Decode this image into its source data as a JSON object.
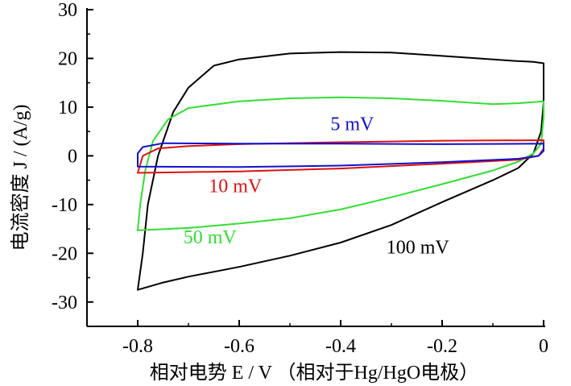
{
  "chart_data": {
    "type": "line",
    "title": "",
    "xlabel": "相对电势 E / V （相对于Hg/HgO电极）",
    "ylabel": "电流密度 J / (A/g)",
    "xlim": [
      -0.9,
      0.0
    ],
    "ylim": [
      -35,
      30
    ],
    "xticks": [
      -0.8,
      -0.6,
      -0.4,
      -0.2,
      0
    ],
    "xtick_labels": [
      "-0.8",
      "-0.6",
      "-0.4",
      "-0.2",
      "0"
    ],
    "yticks": [
      -30,
      -20,
      -10,
      0,
      10,
      20,
      30
    ],
    "ytick_labels": [
      "-30",
      "-20",
      "-10",
      "0",
      "10",
      "20",
      "30"
    ],
    "grid": false,
    "series": [
      {
        "name": "100 mV",
        "color": "#000000",
        "points": [
          [
            -0.8,
            -27.5
          ],
          [
            -0.75,
            -26.0
          ],
          [
            -0.7,
            -24.8
          ],
          [
            -0.6,
            -22.8
          ],
          [
            -0.5,
            -20.5
          ],
          [
            -0.4,
            -17.8
          ],
          [
            -0.3,
            -14.2
          ],
          [
            -0.2,
            -9.5
          ],
          [
            -0.1,
            -5.0
          ],
          [
            -0.05,
            -2.5
          ],
          [
            -0.02,
            0.5
          ],
          [
            -0.005,
            5.0
          ],
          [
            0.0,
            11.0
          ],
          [
            0.0,
            19.0
          ],
          [
            -0.02,
            19.3
          ],
          [
            -0.06,
            19.5
          ],
          [
            -0.2,
            20.5
          ],
          [
            -0.3,
            21.2
          ],
          [
            -0.4,
            21.3
          ],
          [
            -0.5,
            21.0
          ],
          [
            -0.6,
            19.8
          ],
          [
            -0.65,
            18.5
          ],
          [
            -0.7,
            14.0
          ],
          [
            -0.73,
            9.0
          ],
          [
            -0.76,
            0.0
          ],
          [
            -0.78,
            -10.0
          ],
          [
            -0.79,
            -20.0
          ],
          [
            -0.8,
            -27.5
          ]
        ]
      },
      {
        "name": "50 mV",
        "color": "#33dd33",
        "points": [
          [
            -0.8,
            -15.3
          ],
          [
            -0.7,
            -14.8
          ],
          [
            -0.6,
            -13.9
          ],
          [
            -0.5,
            -12.8
          ],
          [
            -0.4,
            -11.0
          ],
          [
            -0.3,
            -8.5
          ],
          [
            -0.2,
            -5.8
          ],
          [
            -0.1,
            -3.0
          ],
          [
            -0.05,
            -1.2
          ],
          [
            -0.02,
            0.5
          ],
          [
            -0.005,
            2.5
          ],
          [
            0.0,
            8.0
          ],
          [
            0.0,
            11.2
          ],
          [
            -0.05,
            10.8
          ],
          [
            -0.1,
            10.6
          ],
          [
            -0.2,
            11.3
          ],
          [
            -0.3,
            11.8
          ],
          [
            -0.4,
            12.0
          ],
          [
            -0.5,
            11.8
          ],
          [
            -0.6,
            11.2
          ],
          [
            -0.7,
            9.8
          ],
          [
            -0.74,
            7.5
          ],
          [
            -0.77,
            3.0
          ],
          [
            -0.785,
            -3.0
          ],
          [
            -0.795,
            -10.0
          ],
          [
            -0.8,
            -15.3
          ]
        ]
      },
      {
        "name": "10 mV",
        "color": "#dd1111",
        "points": [
          [
            -0.8,
            -3.5
          ],
          [
            -0.6,
            -3.2
          ],
          [
            -0.4,
            -2.6
          ],
          [
            -0.2,
            -1.6
          ],
          [
            -0.05,
            -0.8
          ],
          [
            -0.01,
            0.0
          ],
          [
            0.0,
            1.5
          ],
          [
            0.0,
            3.2
          ],
          [
            -0.2,
            3.1
          ],
          [
            -0.4,
            2.8
          ],
          [
            -0.6,
            2.4
          ],
          [
            -0.7,
            2.0
          ],
          [
            -0.76,
            1.5
          ],
          [
            -0.79,
            0.0
          ],
          [
            -0.8,
            -3.5
          ]
        ]
      },
      {
        "name": "5 mV",
        "color": "#1111cc",
        "points": [
          [
            -0.8,
            -2.2
          ],
          [
            -0.6,
            -2.3
          ],
          [
            -0.4,
            -2.0
          ],
          [
            -0.2,
            -1.3
          ],
          [
            -0.05,
            -0.6
          ],
          [
            -0.01,
            0.0
          ],
          [
            0.0,
            1.0
          ],
          [
            0.0,
            2.5
          ],
          [
            -0.2,
            2.4
          ],
          [
            -0.4,
            2.5
          ],
          [
            -0.6,
            2.5
          ],
          [
            -0.75,
            2.6
          ],
          [
            -0.79,
            1.8
          ],
          [
            -0.8,
            0.5
          ],
          [
            -0.8,
            -2.2
          ]
        ]
      }
    ],
    "annotations": [
      {
        "text": "5 mV",
        "color": "#1111cc",
        "x": -0.42,
        "y": 5.3
      },
      {
        "text": "10 mV",
        "color": "#dd1111",
        "x": -0.66,
        "y": -7.5
      },
      {
        "text": "50 mV",
        "color": "#33dd33",
        "x": -0.71,
        "y": -18.0
      },
      {
        "text": "100 mV",
        "color": "#000000",
        "x": -0.31,
        "y": -20.0
      }
    ]
  }
}
